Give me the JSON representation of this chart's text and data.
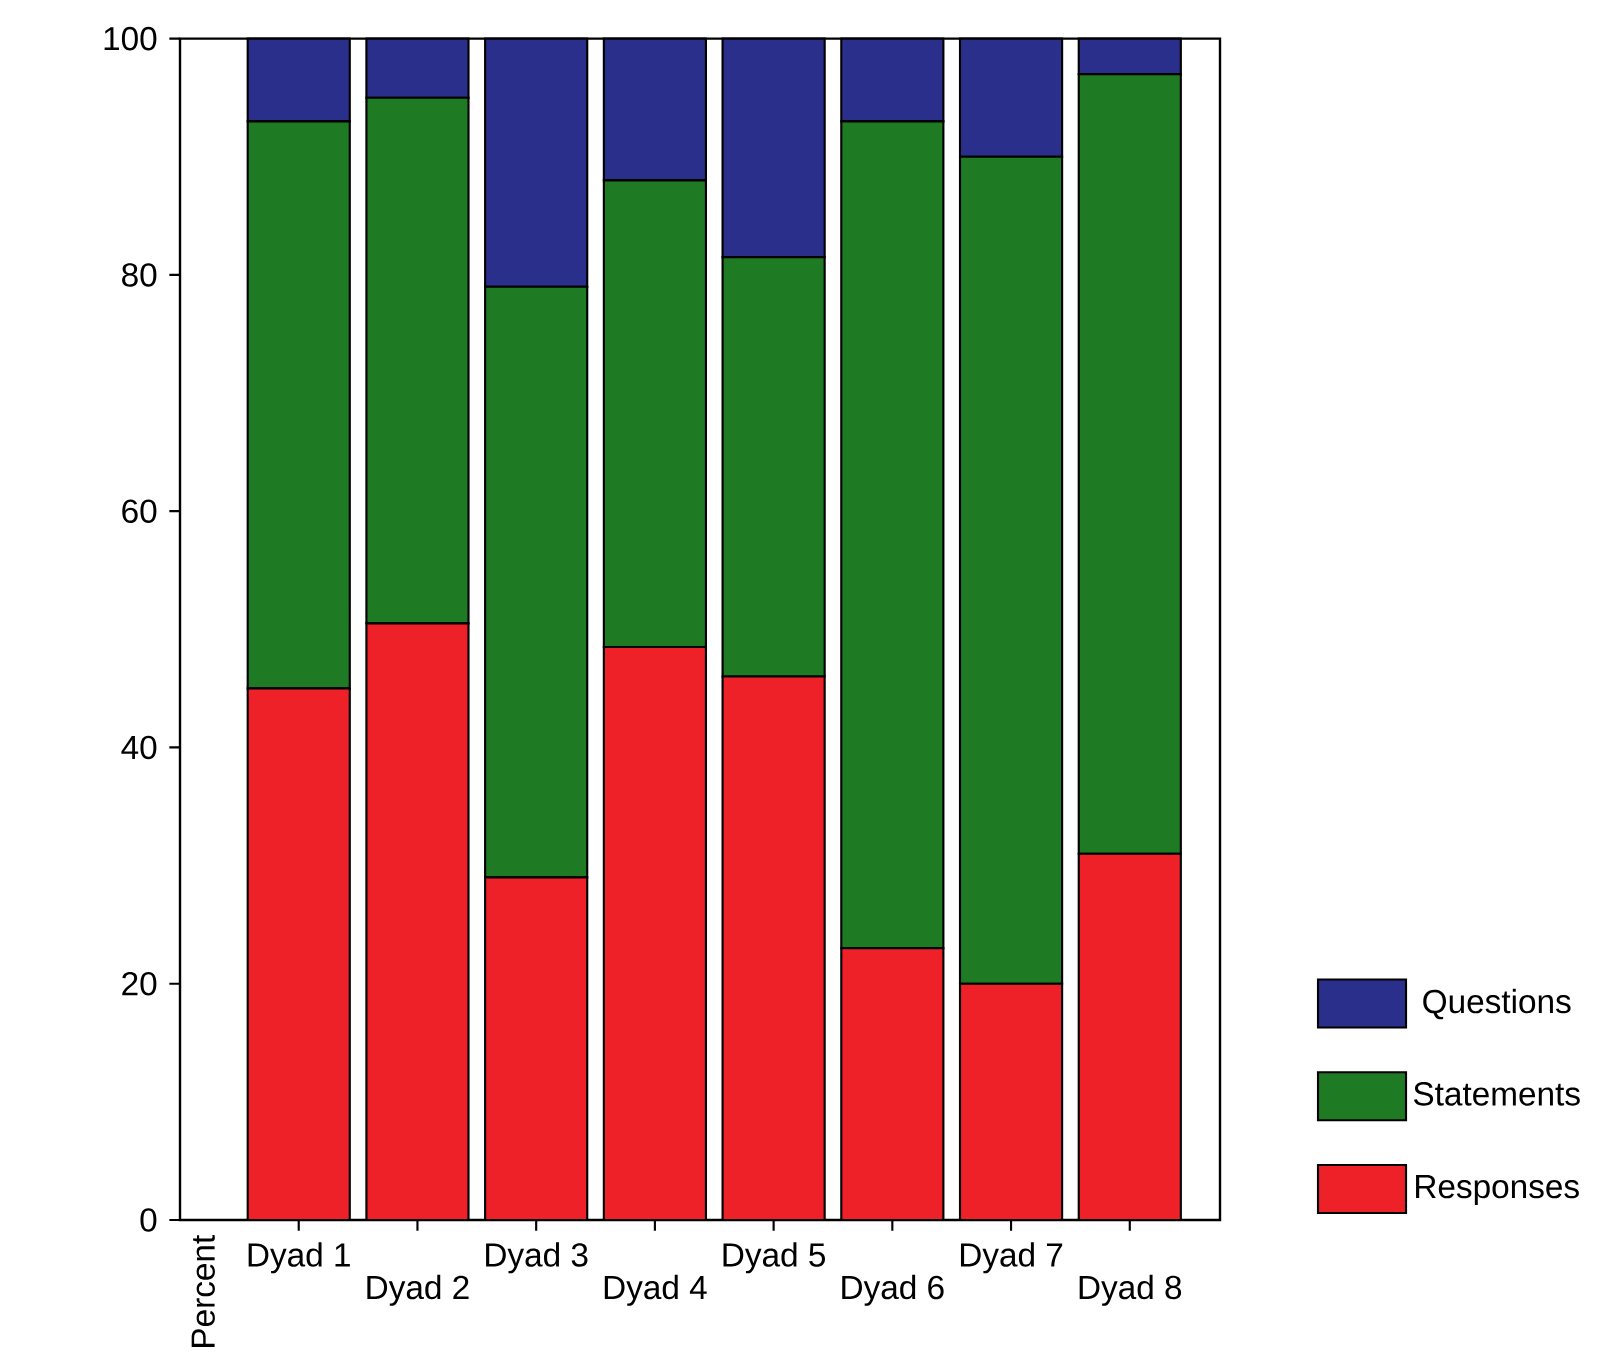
{
  "chart_data": {
    "type": "bar",
    "stacked": true,
    "ylabel": "Percent",
    "categories": [
      "Dyad 1",
      "Dyad 2",
      "Dyad 3",
      "Dyad 4",
      "Dyad 5",
      "Dyad 6",
      "Dyad 7",
      "Dyad 8"
    ],
    "series": [
      {
        "name": "Responses",
        "color": "#ee2028",
        "values": [
          45,
          50.5,
          29,
          48.5,
          46,
          23,
          20,
          31
        ]
      },
      {
        "name": "Statements",
        "color": "#1e7a23",
        "values": [
          48,
          44.5,
          50,
          39.5,
          35.5,
          70,
          70,
          66
        ]
      },
      {
        "name": "Questions",
        "color": "#2b2f8c",
        "values": [
          7,
          5,
          21,
          12,
          18.5,
          7,
          10,
          3
        ]
      }
    ],
    "ylim": [
      0,
      100
    ],
    "yticks": [
      0,
      20,
      40,
      60,
      80,
      100
    ],
    "legend": "right"
  }
}
